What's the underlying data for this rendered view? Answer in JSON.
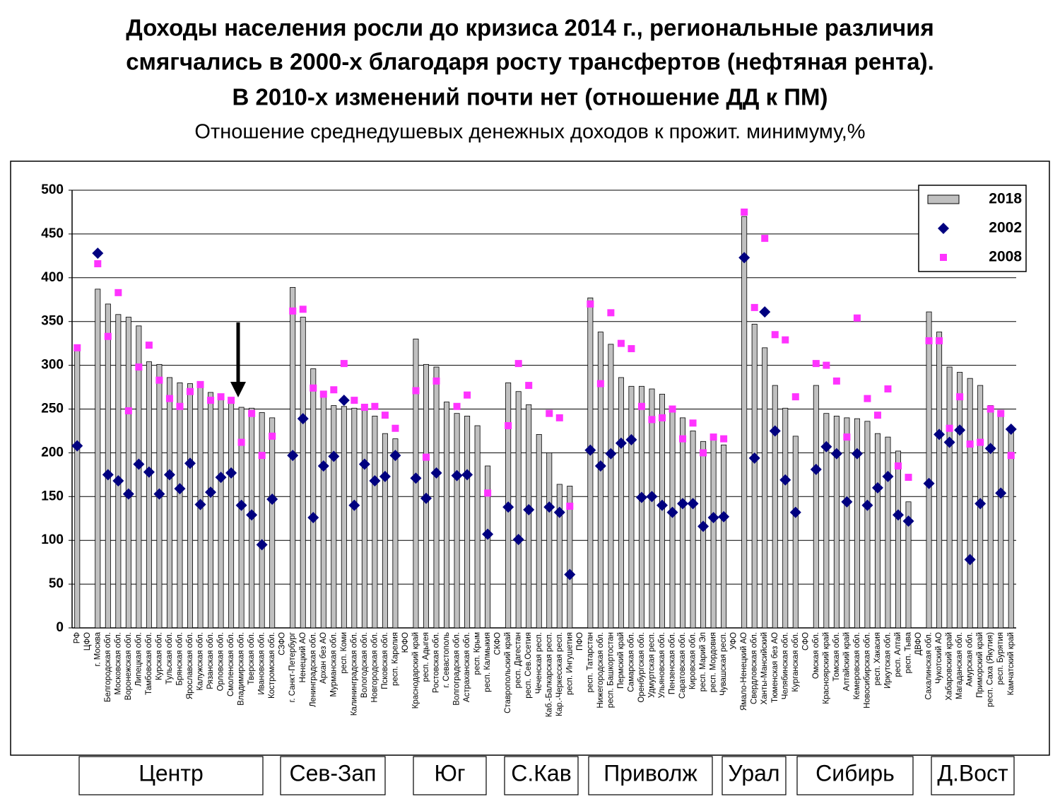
{
  "chart_data": {
    "type": "bar",
    "title": [
      "Доходы населения росли до кризиса 2014 г., региональные различия",
      "смягчались в 2000-х благодаря росту трансфертов (нефтяная рента).",
      "В 2010-х изменений почти нет (отношение ДД к ПМ)"
    ],
    "subtitle": "Отношение среднедушевых денежных доходов к прожит. минимуму,%",
    "categories": [
      "РФ",
      "ЦФО",
      "г. Москва",
      "Белгородская обл.",
      "Московская обл.",
      "Воронежская обл.",
      "Липецкая обл.",
      "Тамбовская обл.",
      "Курская обл.",
      "Тульская обл.",
      "Брянская обл.",
      "Ярославская обл.",
      "Калужская обл.",
      "Рязанская обл.",
      "Орловская обл.",
      "Смоленская обл.",
      "Владимирская обл.",
      "Тверская обл.",
      "Ивановская обл.",
      "Костромская обл.",
      "СЗФО",
      "г. Санкт-Петербург",
      "Ненецкий АО",
      "Ленинградская обл.",
      "Архан без АО",
      "Мурманская обл.",
      "респ. Коми",
      "Калининградская обл.",
      "Вологодская обл.",
      "Новгородская обл.",
      "Псковская обл.",
      "респ. Карелия",
      "ЮФО",
      "Краснодарский край",
      "респ. Адыгея",
      "Ростовская обл.",
      "г. Севастополь",
      "Волгоградская обл.",
      "Астраханская обл.",
      "респ. Крым",
      "респ. Калмыкия",
      "СКФО",
      "Ставропольский край",
      "респ. Дагестан",
      "респ. Сев.Осетия",
      "Чеченская респ.",
      "Каб.-Балкарская респ.",
      "Кар.-Черкесская респ.",
      "респ. Ингушетия",
      "ПФО",
      "респ. Татарстан",
      "Нижегородская обл.",
      "респ. Башкортостан",
      "Пермский край",
      "Самарская обл.",
      "Оренбургская обл.",
      "Удмуртская респ.",
      "Ульяновская обл.",
      "Пензенская обл.",
      "Саратовская обл.",
      "Кировская обл.",
      "респ. Марий Эл",
      "респ. Мордовия",
      "Чувашская респ.",
      "УФО",
      "Ямало-Ненецкий АО",
      "Свердловская обл.",
      "Ханты-Мансийский",
      "Тюменская без АО",
      "Челябинская обл.",
      "Курганская обл.",
      "СФО",
      "Омская обл.",
      "Красноярский край",
      "Томская обл.",
      "Алтайский край",
      "Кемеровская обл.",
      "Новосибирская обл.",
      "респ. Хакасия",
      "Иркутская обл.",
      "респ. Алтай",
      "респ. Тыва",
      "ДВФО",
      "Сахалинская обл.",
      "Чукотский АО",
      "Хабаровский край",
      "Магаданская обл.",
      "Амурская обл.",
      "Приморский край",
      "респ. Саха (Якутия)",
      "респ. Бурятия",
      "Камчатский край"
    ],
    "series": [
      {
        "name": "2018",
        "marker": "bar",
        "color": "#c0c0c0",
        "values": [
          320,
          null,
          387,
          370,
          358,
          355,
          345,
          304,
          301,
          286,
          280,
          279,
          276,
          269,
          266,
          261,
          252,
          251,
          246,
          240,
          null,
          389,
          355,
          296,
          268,
          254,
          253,
          251,
          250,
          242,
          222,
          216,
          null,
          330,
          301,
          298,
          258,
          245,
          242,
          231,
          185,
          null,
          280,
          270,
          255,
          221,
          200,
          164,
          162,
          null,
          377,
          338,
          324,
          286,
          276,
          276,
          273,
          267,
          251,
          240,
          225,
          213,
          215,
          209,
          null,
          470,
          347,
          320,
          277,
          251,
          219,
          null,
          277,
          245,
          242,
          240,
          239,
          236,
          222,
          218,
          202,
          144,
          null,
          361,
          338,
          298,
          292,
          285,
          277,
          254,
          248,
          226
        ]
      },
      {
        "name": "2002",
        "marker": "diamond",
        "color": "#000080",
        "values": [
          208,
          null,
          428,
          175,
          168,
          153,
          187,
          178,
          153,
          175,
          159,
          188,
          141,
          155,
          172,
          177,
          140,
          129,
          95,
          147,
          null,
          197,
          239,
          126,
          185,
          196,
          260,
          140,
          187,
          168,
          173,
          197,
          null,
          171,
          148,
          177,
          null,
          174,
          175,
          null,
          107,
          null,
          138,
          101,
          135,
          null,
          138,
          132,
          61,
          null,
          203,
          185,
          199,
          211,
          215,
          149,
          150,
          140,
          132,
          142,
          142,
          116,
          126,
          127,
          null,
          423,
          194,
          361,
          225,
          169,
          132,
          null,
          181,
          207,
          199,
          144,
          199,
          140,
          160,
          173,
          129,
          122,
          null,
          165,
          221,
          212,
          226,
          78,
          142,
          205,
          154,
          227
        ]
      },
      {
        "name": "2008",
        "marker": "square",
        "color": "#ff33ff",
        "values": [
          320,
          null,
          416,
          333,
          383,
          248,
          298,
          323,
          283,
          262,
          253,
          270,
          278,
          260,
          264,
          260,
          212,
          245,
          197,
          219,
          null,
          362,
          364,
          274,
          267,
          272,
          302,
          260,
          252,
          253,
          243,
          228,
          null,
          271,
          195,
          282,
          null,
          253,
          266,
          null,
          154,
          null,
          231,
          302,
          277,
          null,
          245,
          240,
          139,
          null,
          370,
          279,
          360,
          325,
          319,
          253,
          238,
          240,
          250,
          216,
          234,
          200,
          218,
          216,
          null,
          475,
          366,
          445,
          335,
          329,
          264,
          null,
          302,
          300,
          282,
          218,
          354,
          262,
          243,
          273,
          185,
          172,
          null,
          328,
          328,
          228,
          264,
          210,
          212,
          250,
          245,
          197
        ]
      }
    ],
    "ylim": [
      0,
      500
    ],
    "yticks": [
      0,
      50,
      100,
      150,
      200,
      250,
      300,
      350,
      400,
      450,
      500
    ],
    "grid": true,
    "legend": "top-right",
    "region_labels": [
      "Центр",
      "Сев-Зап",
      "Юг",
      "С.Кав",
      "Приволж",
      "Урал",
      "Сибирь",
      "Д.Вост"
    ]
  }
}
